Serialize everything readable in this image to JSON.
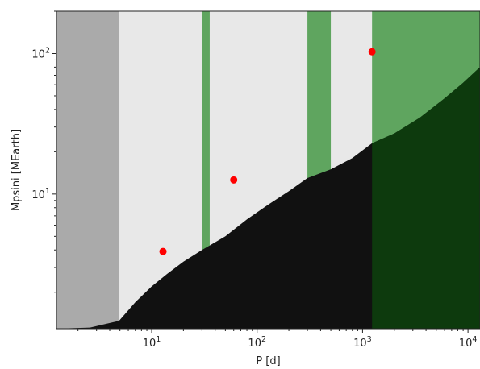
{
  "chart_data": {
    "type": "scatter",
    "title": "",
    "xlabel": "P [d]",
    "ylabel": "Mpsini [MEarth]",
    "xscale": "log",
    "yscale": "log",
    "xlim": [
      1.25,
      13000
    ],
    "ylim": [
      1.1,
      200
    ],
    "grid": false,
    "xticks": [
      {
        "value": 10,
        "base": "10",
        "exp": "1"
      },
      {
        "value": 100,
        "base": "10",
        "exp": "2"
      },
      {
        "value": 1000,
        "base": "10",
        "exp": "3"
      },
      {
        "value": 10000,
        "base": "10",
        "exp": "4"
      }
    ],
    "yticks": [
      {
        "value": 10,
        "base": "10",
        "exp": "1"
      },
      {
        "value": 100,
        "base": "10",
        "exp": "2"
      }
    ],
    "series": [
      {
        "marker": "circle",
        "color": "#ff0000",
        "points": [
          {
            "x": 12.8,
            "y": 3.9
          },
          {
            "x": 60,
            "y": 12.6
          },
          {
            "x": 1230,
            "y": 103
          }
        ]
      }
    ],
    "shaded_regions": [
      {
        "x0": 1.25,
        "x1": 4.9,
        "color": "#aaaaaa"
      },
      {
        "x0": 4.9,
        "x1": 13000,
        "color": "#e8e8e8"
      },
      {
        "x0": 30,
        "x1": 35.5,
        "color": "#5fa55f"
      },
      {
        "x0": 300,
        "x1": 500,
        "color": "#5fa55f"
      },
      {
        "x0": 1230,
        "x1": 13000,
        "color": "#5fa55f"
      }
    ],
    "detection_boundary": [
      {
        "x": 1.25,
        "y": 1.1
      },
      {
        "x": 2.6,
        "y": 1.12
      },
      {
        "x": 4.9,
        "y": 1.25
      },
      {
        "x": 7,
        "y": 1.7
      },
      {
        "x": 10,
        "y": 2.2
      },
      {
        "x": 14,
        "y": 2.7
      },
      {
        "x": 20,
        "y": 3.3
      },
      {
        "x": 30,
        "y": 4.0
      },
      {
        "x": 50,
        "y": 5.0
      },
      {
        "x": 80,
        "y": 6.6
      },
      {
        "x": 130,
        "y": 8.5
      },
      {
        "x": 200,
        "y": 10.5
      },
      {
        "x": 300,
        "y": 13.0
      },
      {
        "x": 500,
        "y": 15.0
      },
      {
        "x": 800,
        "y": 18.0
      },
      {
        "x": 1230,
        "y": 23.0
      },
      {
        "x": 2000,
        "y": 27.0
      },
      {
        "x": 3500,
        "y": 35.0
      },
      {
        "x": 6000,
        "y": 48.0
      },
      {
        "x": 9000,
        "y": 62.0
      },
      {
        "x": 13000,
        "y": 80.0
      }
    ],
    "colors": {
      "undetected": "#111111",
      "undetected_in_green": "#0d3a0d",
      "point": "#ff0000",
      "axes": "#222222"
    }
  }
}
